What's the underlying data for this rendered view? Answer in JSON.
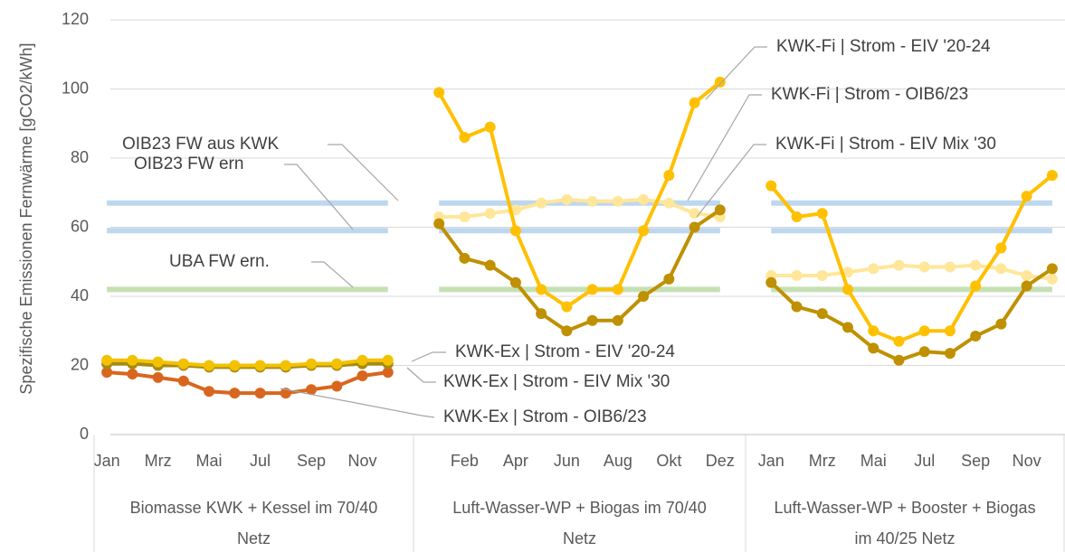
{
  "chart_data": {
    "type": "line",
    "y_label": "Spezifische Emissionen Fernwärme [gCO2/kWh]",
    "categories": [
      "Jan",
      null,
      "Mrz",
      null,
      "Mai",
      null,
      "Jul",
      null,
      "Sep",
      null,
      "Nov",
      null,
      null,
      null,
      "Feb",
      null,
      "Apr",
      null,
      "Jun",
      null,
      "Aug",
      null,
      "Okt",
      null,
      "Dez",
      null,
      "Jan",
      null,
      "Mrz",
      null,
      "Mai",
      null,
      "Jul",
      null,
      "Sep",
      null,
      "Nov",
      null
    ],
    "groups": [
      "Biomasse KWK + Kessel im 70/40 Netz",
      "Luft-Wasser-WP + Biogas im 70/40 Netz",
      "Luft-Wasser-WP + Booster + Biogas im 40/25 Netz"
    ],
    "ylim": [
      0,
      120
    ],
    "yticks": [
      0,
      20,
      40,
      60,
      80,
      100,
      120
    ],
    "grid": true,
    "series": [
      {
        "name": "OIB23 FW aus KWK",
        "color": "#bdd7ee",
        "markers": false,
        "values": [
          67,
          67,
          67,
          67,
          67,
          67,
          67,
          67,
          67,
          67,
          67,
          67,
          null,
          67,
          67,
          67,
          67,
          67,
          67,
          67,
          67,
          67,
          67,
          67,
          67,
          null,
          67,
          67,
          67,
          67,
          67,
          67,
          67,
          67,
          67,
          67,
          67,
          67
        ]
      },
      {
        "name": "OIB23 FW ern",
        "color": "#bdd7ee",
        "markers": false,
        "values": [
          59,
          59,
          59,
          59,
          59,
          59,
          59,
          59,
          59,
          59,
          59,
          59,
          null,
          59,
          59,
          59,
          59,
          59,
          59,
          59,
          59,
          59,
          59,
          59,
          59,
          null,
          59,
          59,
          59,
          59,
          59,
          59,
          59,
          59,
          59,
          59,
          59,
          59
        ]
      },
      {
        "name": "UBA FW ern.",
        "color": "#c5e0b4",
        "markers": false,
        "values": [
          42,
          42,
          42,
          42,
          42,
          42,
          42,
          42,
          42,
          42,
          42,
          42,
          null,
          42,
          42,
          42,
          42,
          42,
          42,
          42,
          42,
          42,
          42,
          42,
          42,
          null,
          42,
          42,
          42,
          42,
          42,
          42,
          42,
          42,
          42,
          42,
          42,
          42
        ]
      },
      {
        "name": "KWK-Ex | Strom - OIB6/23",
        "color": "#d9661e",
        "markers": true,
        "values": [
          18,
          17.5,
          16.5,
          15.5,
          12.5,
          12,
          12,
          12,
          13,
          14,
          17,
          18,
          null,
          null,
          null,
          null,
          null,
          null,
          null,
          null,
          null,
          null,
          null,
          null,
          null,
          null,
          null,
          null,
          null,
          null,
          null,
          null,
          null,
          null,
          null,
          null,
          null,
          null
        ]
      },
      {
        "name": "KWK-Ex | Strom - EIV Mix '30",
        "color": "#a88a12",
        "markers": true,
        "values": [
          20.5,
          20.5,
          20,
          20,
          19.5,
          19.5,
          19.5,
          19.5,
          20,
          20,
          20.5,
          20.5,
          null,
          null,
          null,
          null,
          null,
          null,
          null,
          null,
          null,
          null,
          null,
          null,
          null,
          null,
          null,
          null,
          null,
          null,
          null,
          null,
          null,
          null,
          null,
          null,
          null,
          null
        ]
      },
      {
        "name": "KWK-Ex | Strom - EIV '20-24",
        "color": "#f2c200",
        "markers": true,
        "values": [
          21.5,
          21.5,
          21,
          20.5,
          20,
          20,
          20,
          20,
          20.5,
          20.5,
          21.5,
          21.5,
          null,
          null,
          null,
          null,
          null,
          null,
          null,
          null,
          null,
          null,
          null,
          null,
          null,
          null,
          null,
          null,
          null,
          null,
          null,
          null,
          null,
          null,
          null,
          null,
          null,
          null
        ]
      },
      {
        "name": "KWK-Fi | Strom - OIB6/23",
        "color": "#ffe699",
        "markers": true,
        "values": [
          null,
          null,
          null,
          null,
          null,
          null,
          null,
          null,
          null,
          null,
          null,
          null,
          null,
          63,
          63,
          64,
          65,
          67,
          68,
          67.5,
          67.5,
          68,
          67,
          64,
          63,
          null,
          46,
          46,
          46,
          47,
          48,
          49,
          48.5,
          48.5,
          49,
          48,
          46,
          45
        ]
      },
      {
        "name": "KWK-Fi | Strom - EIV Mix '30",
        "color": "#bf9000",
        "markers": true,
        "values": [
          null,
          null,
          null,
          null,
          null,
          null,
          null,
          null,
          null,
          null,
          null,
          null,
          null,
          61,
          51,
          49,
          44,
          35,
          30,
          33,
          33,
          40,
          45,
          60,
          65,
          null,
          44,
          37,
          35,
          31,
          25,
          21.5,
          24,
          23.5,
          28.5,
          32,
          43,
          48
        ]
      },
      {
        "name": "KWK-Fi | Strom - EIV '20-24",
        "color": "#ffc000",
        "markers": true,
        "values": [
          null,
          null,
          null,
          null,
          null,
          null,
          null,
          null,
          null,
          null,
          null,
          null,
          null,
          99,
          86,
          89,
          59,
          42,
          37,
          42,
          42,
          59,
          75,
          96,
          102,
          null,
          72,
          63,
          64,
          42,
          30,
          27,
          30,
          30,
          43,
          54,
          69,
          75
        ]
      }
    ]
  }
}
